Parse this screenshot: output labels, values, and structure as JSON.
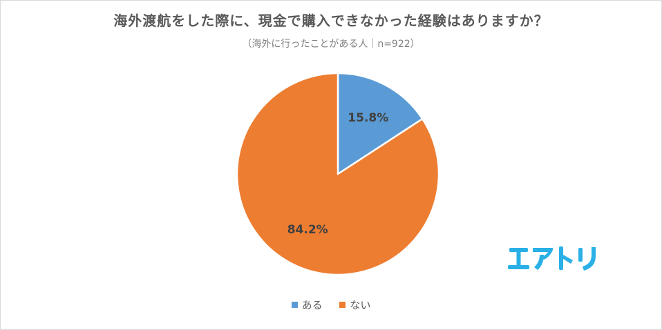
{
  "title": "海外渡航をした際に、現金で購入できなかった経験はありますか？",
  "subtitle": "（海外に行ったことがある人｜n=922）",
  "brand": {
    "logo_text": "エアトリ",
    "color": "#2ab0e6"
  },
  "chart_data": {
    "type": "pie",
    "title": "海外渡航をした際に、現金で購入できなかった経験はありますか？",
    "subtitle": "（海外に行ったことがある人｜n=922）",
    "start_angle_deg": 0,
    "direction": "clockwise",
    "legend_position": "bottom",
    "slices": [
      {
        "label": "ある",
        "value": 15.8,
        "display": "15.8%",
        "color": "#5b9bd5"
      },
      {
        "label": "ない",
        "value": 84.2,
        "display": "84.2%",
        "color": "#ed7d31"
      }
    ]
  }
}
